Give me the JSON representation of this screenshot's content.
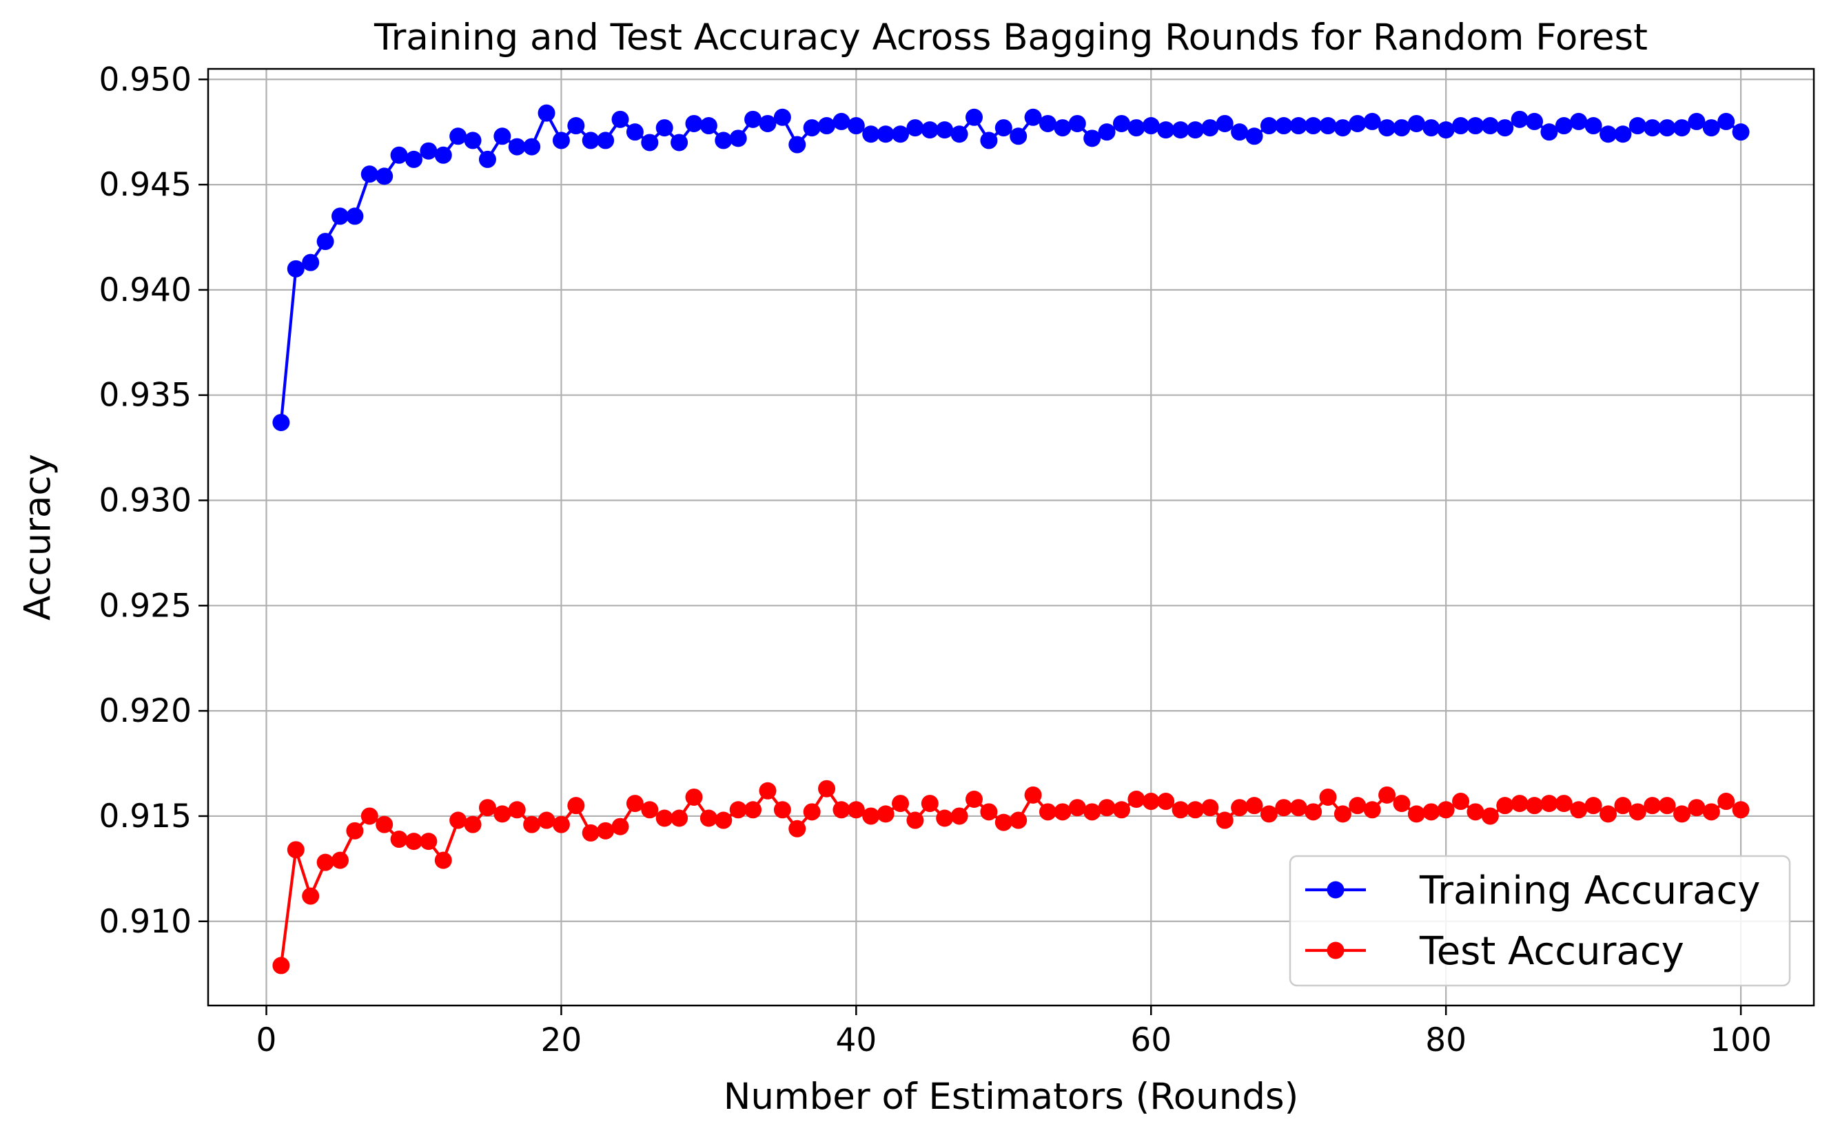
{
  "chart_data": {
    "type": "line",
    "title": "Training and Test Accuracy Across Bagging Rounds for Random Forest",
    "xlabel": "Number of Estimators (Rounds)",
    "ylabel": "Accuracy",
    "xlim": [
      -3.95,
      104.95
    ],
    "ylim": [
      0.906,
      0.9505
    ],
    "xticks": [
      0,
      20,
      40,
      60,
      80,
      100
    ],
    "xtick_labels": [
      "0",
      "20",
      "40",
      "60",
      "80",
      "100"
    ],
    "yticks": [
      0.91,
      0.915,
      0.92,
      0.925,
      0.93,
      0.935,
      0.94,
      0.945,
      0.95
    ],
    "ytick_labels": [
      "0.910",
      "0.915",
      "0.920",
      "0.925",
      "0.930",
      "0.935",
      "0.940",
      "0.945",
      "0.950"
    ],
    "grid": true,
    "legend_position": "bottom-right",
    "marker": "circle",
    "x": [
      1,
      2,
      3,
      4,
      5,
      6,
      7,
      8,
      9,
      10,
      11,
      12,
      13,
      14,
      15,
      16,
      17,
      18,
      19,
      20,
      21,
      22,
      23,
      24,
      25,
      26,
      27,
      28,
      29,
      30,
      31,
      32,
      33,
      34,
      35,
      36,
      37,
      38,
      39,
      40,
      41,
      42,
      43,
      44,
      45,
      46,
      47,
      48,
      49,
      50,
      51,
      52,
      53,
      54,
      55,
      56,
      57,
      58,
      59,
      60,
      61,
      62,
      63,
      64,
      65,
      66,
      67,
      68,
      69,
      70,
      71,
      72,
      73,
      74,
      75,
      76,
      77,
      78,
      79,
      80,
      81,
      82,
      83,
      84,
      85,
      86,
      87,
      88,
      89,
      90,
      91,
      92,
      93,
      94,
      95,
      96,
      97,
      98,
      99,
      100
    ],
    "series": [
      {
        "name": "Training Accuracy",
        "color": "#0000ff",
        "values": [
          0.9337,
          0.941,
          0.9413,
          0.9423,
          0.9435,
          0.9435,
          0.9455,
          0.9454,
          0.9464,
          0.9462,
          0.9466,
          0.9464,
          0.9473,
          0.9471,
          0.9462,
          0.9473,
          0.9468,
          0.9468,
          0.9484,
          0.9471,
          0.9478,
          0.9471,
          0.9471,
          0.9481,
          0.9475,
          0.947,
          0.9477,
          0.947,
          0.9479,
          0.9478,
          0.9471,
          0.9472,
          0.9481,
          0.9479,
          0.9482,
          0.9469,
          0.9477,
          0.9478,
          0.948,
          0.9478,
          0.9474,
          0.9474,
          0.9474,
          0.9477,
          0.9476,
          0.9476,
          0.9474,
          0.9482,
          0.9471,
          0.9477,
          0.9473,
          0.9482,
          0.9479,
          0.9477,
          0.9479,
          0.9472,
          0.9475,
          0.9479,
          0.9477,
          0.9478,
          0.9476,
          0.9476,
          0.9476,
          0.9477,
          0.9479,
          0.9475,
          0.9473,
          0.9478,
          0.9478,
          0.9478,
          0.9478,
          0.9478,
          0.9477,
          0.9479,
          0.948,
          0.9477,
          0.9477,
          0.9479,
          0.9477,
          0.9476,
          0.9478,
          0.9478,
          0.9478,
          0.9477,
          0.9481,
          0.948,
          0.9475,
          0.9478,
          0.948,
          0.9478,
          0.9474,
          0.9474,
          0.9478,
          0.9477,
          0.9477,
          0.9477,
          0.948,
          0.9477,
          0.948,
          0.9475
        ]
      },
      {
        "name": "Test Accuracy",
        "color": "#ff0000",
        "values": [
          0.9079,
          0.9134,
          0.9112,
          0.9128,
          0.9129,
          0.9143,
          0.915,
          0.9146,
          0.9139,
          0.9138,
          0.9138,
          0.9129,
          0.9148,
          0.9146,
          0.9154,
          0.9151,
          0.9153,
          0.9146,
          0.9148,
          0.9146,
          0.9155,
          0.9142,
          0.9143,
          0.9145,
          0.9156,
          0.9153,
          0.9149,
          0.9149,
          0.9159,
          0.9149,
          0.9148,
          0.9153,
          0.9153,
          0.9162,
          0.9153,
          0.9144,
          0.9152,
          0.9163,
          0.9153,
          0.9153,
          0.915,
          0.9151,
          0.9156,
          0.9148,
          0.9156,
          0.9149,
          0.915,
          0.9158,
          0.9152,
          0.9147,
          0.9148,
          0.916,
          0.9152,
          0.9152,
          0.9154,
          0.9152,
          0.9154,
          0.9153,
          0.9158,
          0.9157,
          0.9157,
          0.9153,
          0.9153,
          0.9154,
          0.9148,
          0.9154,
          0.9155,
          0.9151,
          0.9154,
          0.9154,
          0.9152,
          0.9159,
          0.9151,
          0.9155,
          0.9153,
          0.916,
          0.9156,
          0.9151,
          0.9152,
          0.9153,
          0.9157,
          0.9152,
          0.915,
          0.9155,
          0.9156,
          0.9155,
          0.9156,
          0.9156,
          0.9153,
          0.9155,
          0.9151,
          0.9155,
          0.9152,
          0.9155,
          0.9155,
          0.9151,
          0.9154,
          0.9152,
          0.9157,
          0.9153
        ]
      }
    ]
  }
}
